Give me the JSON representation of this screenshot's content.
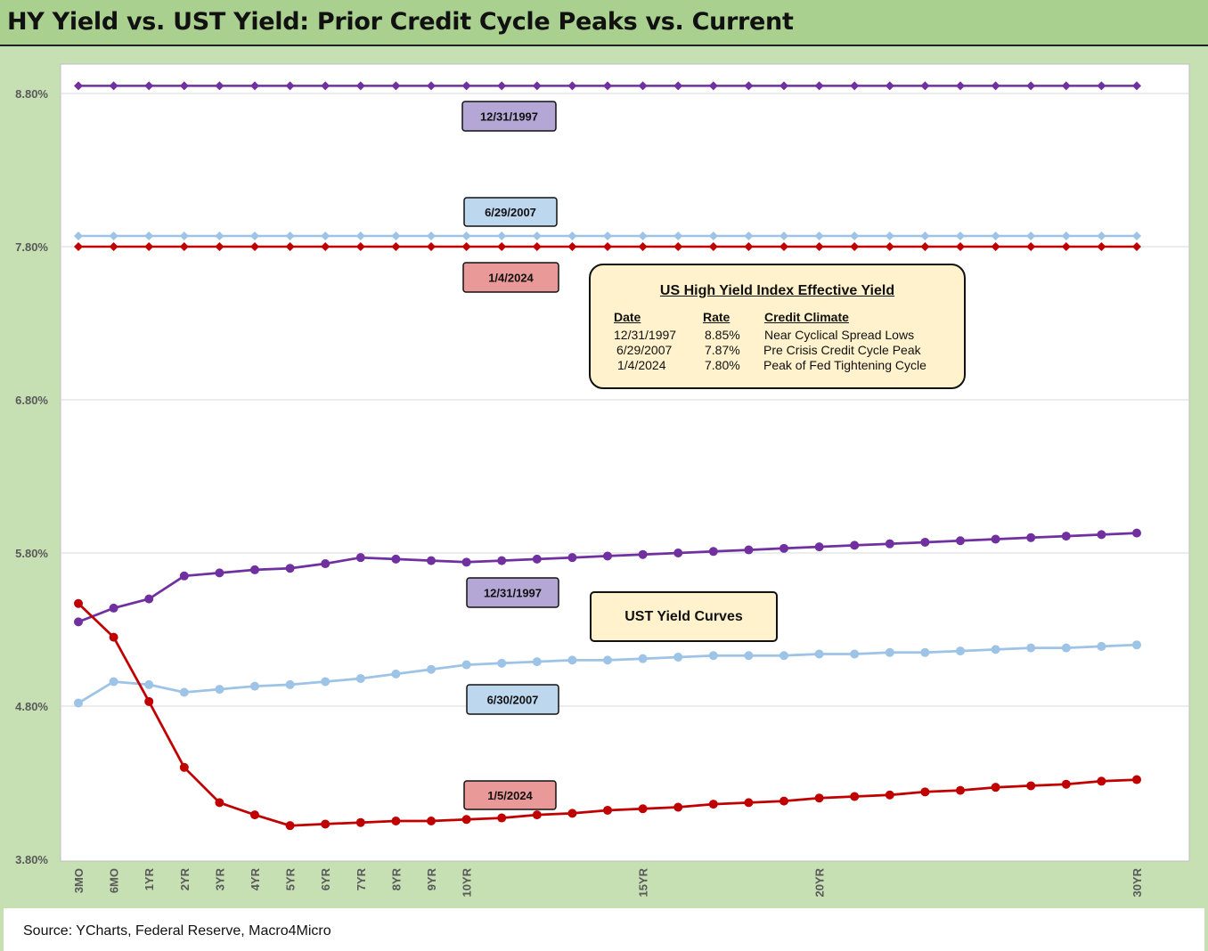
{
  "title": "HY Yield vs. UST Yield: Prior Credit Cycle Peaks vs. Current",
  "source": "Source: YCharts, Federal Reserve, Macro4Micro",
  "colors": {
    "purple": "#7030a0",
    "lightblue": "#9dc3e6",
    "red": "#c00000",
    "callout_purple": "#b4a7d6",
    "callout_blue": "#bdd7ee",
    "callout_red": "#ea9999",
    "box_fill": "#fff2cc",
    "frame": "#c6e0b4",
    "header": "#a9d08e"
  },
  "chart_data": {
    "type": "line",
    "ylim": [
      3.8,
      9.0
    ],
    "yticks": [
      "3.80%",
      "4.80%",
      "5.80%",
      "6.80%",
      "7.80%",
      "8.80%"
    ],
    "ytick_values": [
      3.8,
      4.8,
      5.8,
      6.8,
      7.8,
      8.8
    ],
    "x_tick_labels": [
      "3MO",
      "6MO",
      "1YR",
      "2YR",
      "3YR",
      "4YR",
      "5YR",
      "6YR",
      "7YR",
      "8YR",
      "9YR",
      "10YR",
      "",
      "",
      "",
      "",
      "15YR",
      "",
      "",
      "",
      "",
      "20YR",
      "",
      "",
      "",
      "",
      "",
      "",
      "",
      "",
      "30YR"
    ],
    "grid": "horizontal",
    "series": [
      {
        "name": "12/31/1997",
        "group": "hy",
        "color_key": "purple",
        "marker": "diamond",
        "values": [
          8.85,
          8.85,
          8.85,
          8.85,
          8.85,
          8.85,
          8.85,
          8.85,
          8.85,
          8.85,
          8.85,
          8.85,
          8.85,
          8.85,
          8.85,
          8.85,
          8.85,
          8.85,
          8.85,
          8.85,
          8.85,
          8.85,
          8.85,
          8.85,
          8.85,
          8.85,
          8.85,
          8.85,
          8.85,
          8.85,
          8.85
        ]
      },
      {
        "name": "6/29/2007",
        "group": "hy",
        "color_key": "lightblue",
        "marker": "diamond",
        "values": [
          7.87,
          7.87,
          7.87,
          7.87,
          7.87,
          7.87,
          7.87,
          7.87,
          7.87,
          7.87,
          7.87,
          7.87,
          7.87,
          7.87,
          7.87,
          7.87,
          7.87,
          7.87,
          7.87,
          7.87,
          7.87,
          7.87,
          7.87,
          7.87,
          7.87,
          7.87,
          7.87,
          7.87,
          7.87,
          7.87,
          7.87
        ]
      },
      {
        "name": "1/4/2024",
        "group": "hy",
        "color_key": "red",
        "marker": "diamond",
        "values": [
          7.8,
          7.8,
          7.8,
          7.8,
          7.8,
          7.8,
          7.8,
          7.8,
          7.8,
          7.8,
          7.8,
          7.8,
          7.8,
          7.8,
          7.8,
          7.8,
          7.8,
          7.8,
          7.8,
          7.8,
          7.8,
          7.8,
          7.8,
          7.8,
          7.8,
          7.8,
          7.8,
          7.8,
          7.8,
          7.8,
          7.8
        ]
      },
      {
        "name": "12/31/1997",
        "group": "ust",
        "color_key": "purple",
        "marker": "circle",
        "values": [
          5.35,
          5.44,
          5.5,
          5.65,
          5.67,
          5.69,
          5.7,
          5.73,
          5.77,
          5.76,
          5.75,
          5.74,
          5.75,
          5.76,
          5.77,
          5.78,
          5.79,
          5.8,
          5.81,
          5.82,
          5.83,
          5.84,
          5.85,
          5.86,
          5.87,
          5.88,
          5.89,
          5.9,
          5.91,
          5.92,
          5.93
        ]
      },
      {
        "name": "6/30/2007",
        "group": "ust",
        "color_key": "lightblue",
        "marker": "circle",
        "values": [
          4.82,
          4.96,
          4.94,
          4.89,
          4.91,
          4.93,
          4.94,
          4.96,
          4.98,
          5.01,
          5.04,
          5.07,
          5.08,
          5.09,
          5.1,
          5.1,
          5.11,
          5.12,
          5.13,
          5.13,
          5.13,
          5.14,
          5.14,
          5.15,
          5.15,
          5.16,
          5.17,
          5.18,
          5.18,
          5.19,
          5.2
        ]
      },
      {
        "name": "1/5/2024",
        "group": "ust",
        "color_key": "red",
        "marker": "circle",
        "values": [
          5.47,
          5.25,
          4.83,
          4.4,
          4.17,
          4.09,
          4.02,
          4.03,
          4.04,
          4.05,
          4.05,
          4.06,
          4.07,
          4.09,
          4.1,
          4.12,
          4.13,
          4.14,
          4.16,
          4.17,
          4.18,
          4.2,
          4.21,
          4.22,
          4.24,
          4.25,
          4.27,
          4.28,
          4.29,
          4.31,
          4.32
        ]
      }
    ]
  },
  "callouts": [
    {
      "label": "12/31/1997",
      "color_key": "callout_purple"
    },
    {
      "label": "6/29/2007",
      "color_key": "callout_blue"
    },
    {
      "label": "1/4/2024",
      "color_key": "callout_red"
    },
    {
      "label": "12/31/1997",
      "color_key": "callout_purple"
    },
    {
      "label": "6/30/2007",
      "color_key": "callout_blue"
    },
    {
      "label": "1/5/2024",
      "color_key": "callout_red"
    }
  ],
  "hy_legend": {
    "title": "US High Yield Index Effective Yield",
    "headers": [
      "Date",
      "Rate",
      "Credit Climate"
    ],
    "rows": [
      [
        "12/31/1997",
        "8.85%",
        "Near Cyclical Spread Lows"
      ],
      [
        "6/29/2007",
        "7.87%",
        "Pre Crisis Credit Cycle Peak"
      ],
      [
        "1/4/2024",
        "7.80%",
        "Peak of Fed Tightening Cycle"
      ]
    ]
  },
  "ust_label": "UST Yield Curves"
}
